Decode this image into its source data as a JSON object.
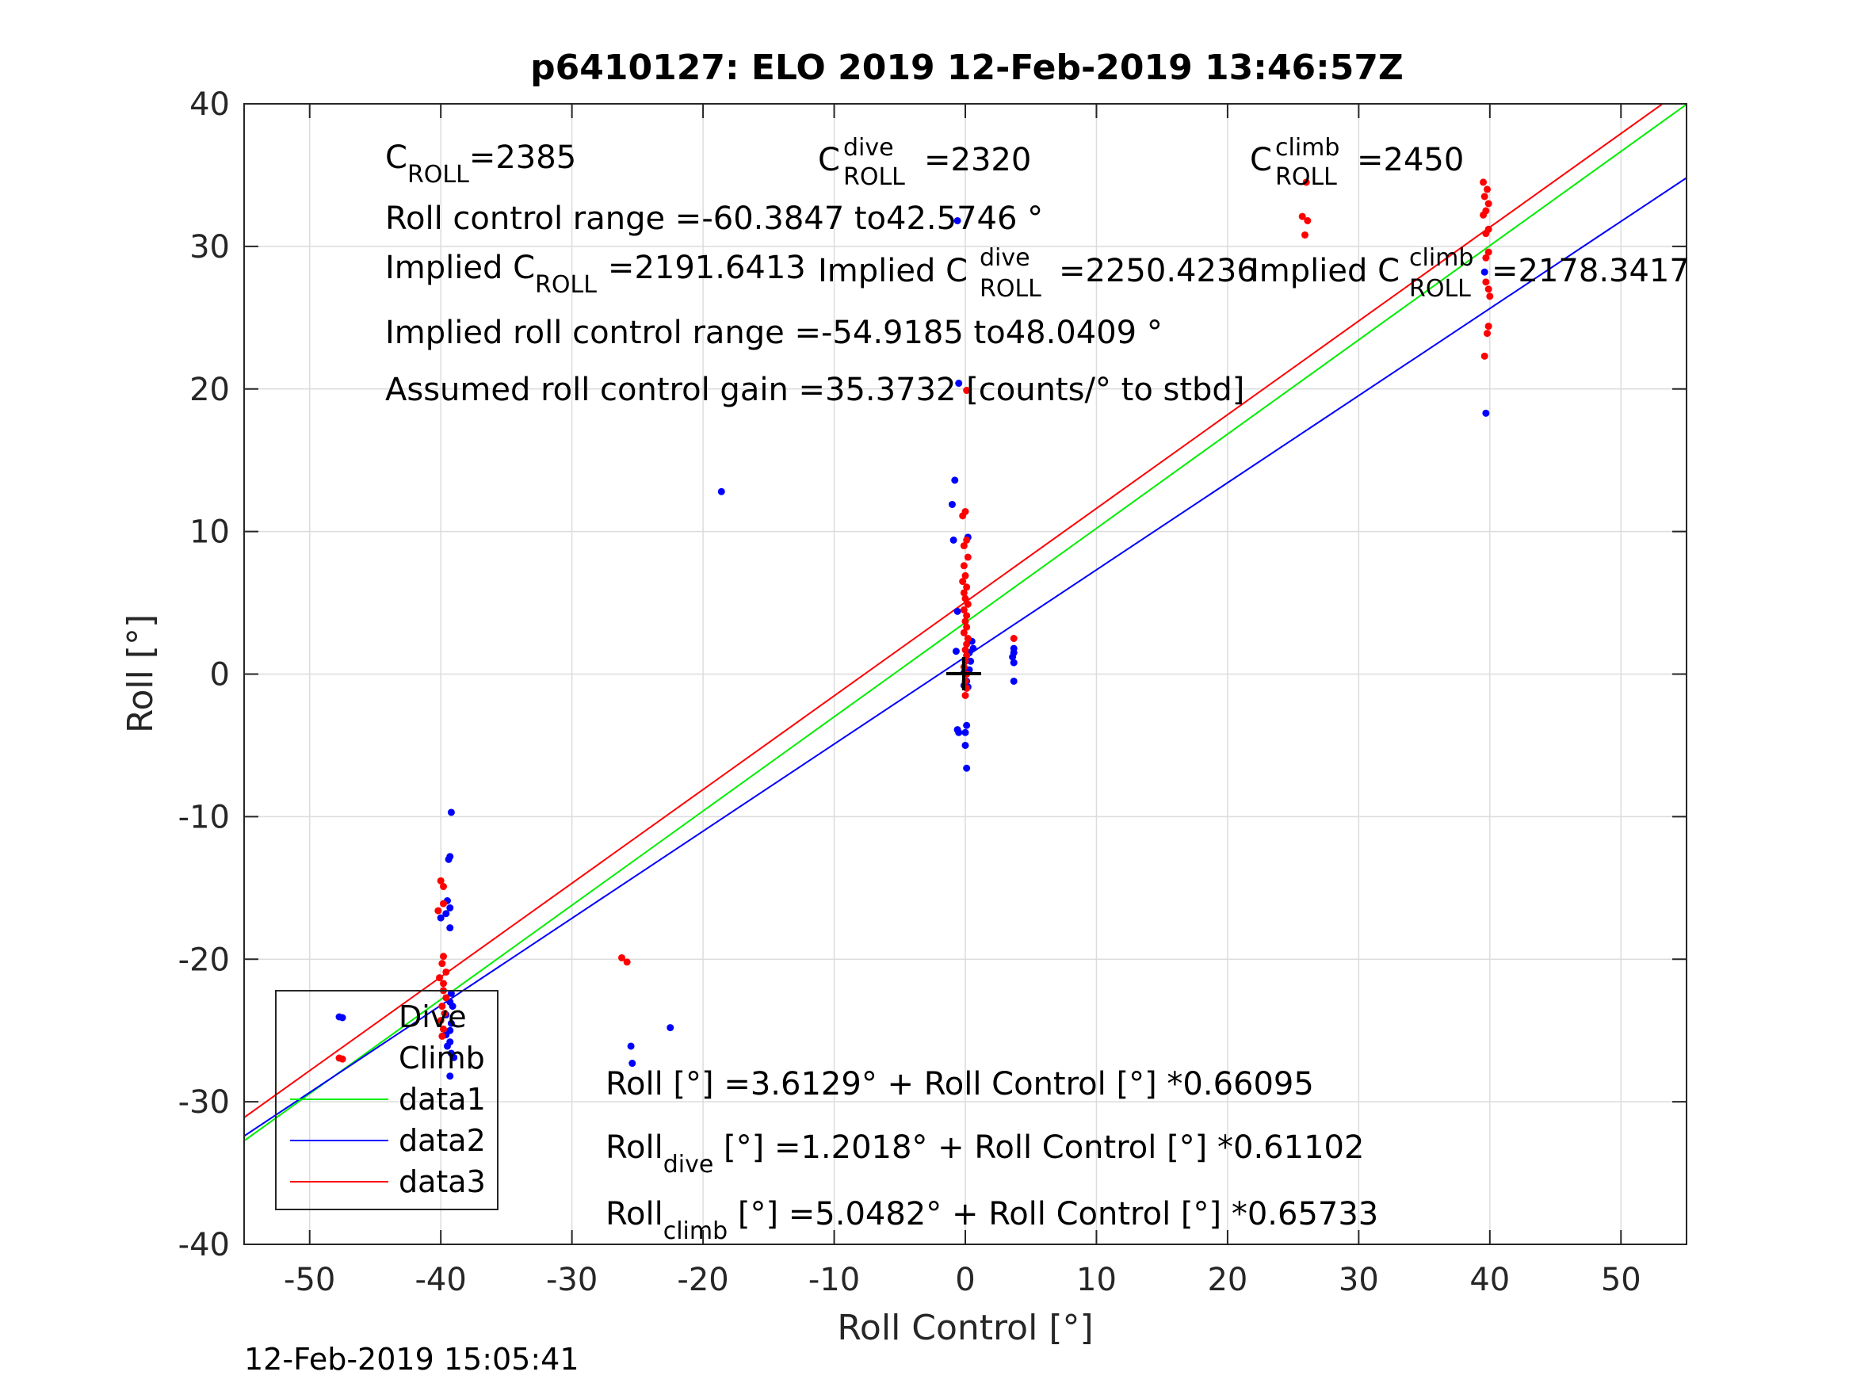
{
  "figure": {
    "title": "p6410127: ELO 2019 12-Feb-2019 13:46:57Z",
    "timestamp": "12-Feb-2019 15:05:41"
  },
  "colors": {
    "dive": "#0000ff",
    "climb": "#ff0000",
    "data1": "#00ee00",
    "data2": "#0000ff",
    "data3": "#ff0000",
    "grid": "#dcdcdc",
    "axis": "#262626"
  },
  "annotations": {
    "c_roll": {
      "main": "C",
      "sub": "ROLL",
      "value": "=2385"
    },
    "c_roll_dive": {
      "main": "C",
      "sup": "dive",
      "sub": "ROLL",
      "value": "=2320"
    },
    "c_roll_climb": {
      "main": "C",
      "sup": "climb",
      "sub": "ROLL",
      "value": "=2450"
    },
    "roll_range": "Roll control range =-60.3847 to42.5746 °",
    "implied_c_roll": {
      "main": "Implied C",
      "sub": "ROLL",
      "value": "=2191.6413"
    },
    "implied_c_roll_dive": {
      "main": "Implied C",
      "sup": "dive",
      "sub": "ROLL",
      "value": "=2250.4236"
    },
    "implied_c_roll_climb": {
      "main": "Implied C",
      "sup": "climb",
      "sub": "ROLL",
      "value": "=2178.3417"
    },
    "implied_range": "Implied roll control range =-54.9185 to48.0409 °",
    "gain": "Assumed roll control gain =35.3732 [counts/° to stbd]",
    "fit_all": "Roll [°] =3.6129° + Roll Control [°] *0.66095",
    "fit_dive": {
      "main": "Roll",
      "sub": "dive",
      "value": " [°] =1.2018° + Roll Control [°] *0.61102"
    },
    "fit_climb": {
      "main": "Roll",
      "sub": "climb",
      "value": " [°] =5.0482° + Roll Control [°] *0.65733"
    }
  },
  "chart_data": {
    "type": "scatter",
    "title": "p6410127: ELO 2019 12-Feb-2019 13:46:57Z",
    "xlabel": "Roll Control [°]",
    "ylabel": "Roll [°]",
    "xlim": [
      -55,
      55
    ],
    "ylim": [
      -40,
      40
    ],
    "xticks": [
      -50,
      -40,
      -30,
      -20,
      -10,
      0,
      10,
      20,
      30,
      40,
      50
    ],
    "yticks": [
      -40,
      -30,
      -20,
      -10,
      0,
      10,
      20,
      30,
      40
    ],
    "grid": true,
    "legend_position": "bottom-left",
    "legend": [
      "Dive",
      "Climb",
      "data1",
      "data2",
      "data3"
    ],
    "series": [
      {
        "name": "Dive",
        "kind": "points",
        "color": "#0000ff",
        "points": [
          [
            -47.5,
            -24.1
          ],
          [
            -39.2,
            -9.7
          ],
          [
            -39.3,
            -12.8
          ],
          [
            -39.4,
            -13.0
          ],
          [
            -39.5,
            -15.9
          ],
          [
            -39.3,
            -16.4
          ],
          [
            -39.6,
            -16.8
          ],
          [
            -40.0,
            -17.1
          ],
          [
            -39.3,
            -17.8
          ],
          [
            -39.2,
            -22.4
          ],
          [
            -39.3,
            -23.0
          ],
          [
            -39.1,
            -23.3
          ],
          [
            -39.6,
            -23.9
          ],
          [
            -39.2,
            -24.5
          ],
          [
            -39.3,
            -25.0
          ],
          [
            -39.6,
            -25.3
          ],
          [
            -39.3,
            -25.8
          ],
          [
            -39.5,
            -26.1
          ],
          [
            -39.2,
            -26.6
          ],
          [
            -39.0,
            -26.9
          ],
          [
            -39.3,
            -28.2
          ],
          [
            -25.5,
            -26.1
          ],
          [
            -25.4,
            -27.3
          ],
          [
            -22.5,
            -24.8
          ],
          [
            -18.6,
            12.8
          ],
          [
            -0.8,
            13.6
          ],
          [
            -1.0,
            11.9
          ],
          [
            -0.9,
            9.4
          ],
          [
            0.2,
            9.6
          ],
          [
            -0.6,
            4.4
          ],
          [
            -0.7,
            1.6
          ],
          [
            0.3,
            1.5
          ],
          [
            0.6,
            1.8
          ],
          [
            0.5,
            2.3
          ],
          [
            0.4,
            0.9
          ],
          [
            0.3,
            0.3
          ],
          [
            -0.1,
            0.1
          ],
          [
            0.1,
            -0.5
          ],
          [
            -0.1,
            -0.8
          ],
          [
            0.2,
            -0.9
          ],
          [
            -0.6,
            -3.9
          ],
          [
            -0.5,
            -4.1
          ],
          [
            0.1,
            -3.6
          ],
          [
            0.0,
            -4.1
          ],
          [
            0.0,
            -5.0
          ],
          [
            0.1,
            -6.6
          ],
          [
            3.7,
            1.8
          ],
          [
            3.7,
            1.5
          ],
          [
            3.6,
            1.2
          ],
          [
            3.7,
            0.8
          ],
          [
            3.7,
            -0.5
          ],
          [
            39.6,
            28.2
          ],
          [
            39.7,
            18.3
          ],
          [
            -0.6,
            31.8
          ],
          [
            -0.5,
            20.4
          ]
        ]
      },
      {
        "name": "Climb",
        "kind": "points",
        "color": "#ff0000",
        "points": [
          [
            -47.5,
            -27.0
          ],
          [
            -40.0,
            -14.5
          ],
          [
            -39.8,
            -14.9
          ],
          [
            -40.2,
            -16.6
          ],
          [
            -39.8,
            -16.1
          ],
          [
            -39.8,
            -19.8
          ],
          [
            -39.9,
            -20.3
          ],
          [
            -39.6,
            -20.9
          ],
          [
            -40.1,
            -21.3
          ],
          [
            -39.8,
            -21.7
          ],
          [
            -39.8,
            -22.2
          ],
          [
            -39.6,
            -22.7
          ],
          [
            -39.9,
            -23.3
          ],
          [
            -39.7,
            -23.8
          ],
          [
            -40.0,
            -24.3
          ],
          [
            -39.8,
            -24.9
          ],
          [
            -39.9,
            -25.4
          ],
          [
            -26.2,
            -19.9
          ],
          [
            -25.8,
            -20.2
          ],
          [
            0.0,
            11.4
          ],
          [
            -0.2,
            11.1
          ],
          [
            0.1,
            9.4
          ],
          [
            -0.1,
            9.0
          ],
          [
            0.2,
            8.2
          ],
          [
            -0.1,
            7.6
          ],
          [
            0.0,
            6.9
          ],
          [
            -0.2,
            6.5
          ],
          [
            0.1,
            6.1
          ],
          [
            -0.1,
            5.7
          ],
          [
            0.0,
            5.3
          ],
          [
            0.2,
            4.9
          ],
          [
            -0.1,
            4.5
          ],
          [
            0.1,
            4.1
          ],
          [
            0.0,
            3.7
          ],
          [
            0.1,
            3.3
          ],
          [
            -0.1,
            2.9
          ],
          [
            0.2,
            2.5
          ],
          [
            0.1,
            2.1
          ],
          [
            0.0,
            1.7
          ],
          [
            0.1,
            1.3
          ],
          [
            0.0,
            0.9
          ],
          [
            -0.1,
            0.5
          ],
          [
            0.1,
            0.0
          ],
          [
            0.0,
            -0.5
          ],
          [
            0.1,
            -1.0
          ],
          [
            0.0,
            -1.5
          ],
          [
            0.1,
            19.9
          ],
          [
            3.7,
            2.5
          ],
          [
            25.7,
            32.1
          ],
          [
            26.1,
            31.8
          ],
          [
            25.9,
            30.8
          ],
          [
            26.0,
            34.5
          ],
          [
            39.5,
            34.5
          ],
          [
            39.8,
            34.0
          ],
          [
            39.6,
            33.5
          ],
          [
            39.9,
            33.0
          ],
          [
            39.7,
            32.5
          ],
          [
            39.5,
            32.2
          ],
          [
            39.9,
            31.2
          ],
          [
            39.7,
            30.9
          ],
          [
            39.9,
            29.6
          ],
          [
            39.7,
            29.2
          ],
          [
            39.7,
            27.5
          ],
          [
            39.9,
            27.0
          ],
          [
            40.0,
            26.5
          ],
          [
            39.9,
            24.4
          ],
          [
            39.8,
            23.9
          ],
          [
            39.6,
            22.3
          ]
        ]
      },
      {
        "name": "data1",
        "kind": "line",
        "color": "#00ee00",
        "intercept": 3.6129,
        "slope": 0.66095
      },
      {
        "name": "data2",
        "kind": "line",
        "color": "#0000ff",
        "intercept": 1.2018,
        "slope": 0.61102
      },
      {
        "name": "data3",
        "kind": "line",
        "color": "#ff0000",
        "intercept": 5.0482,
        "slope": 0.65733
      }
    ]
  }
}
